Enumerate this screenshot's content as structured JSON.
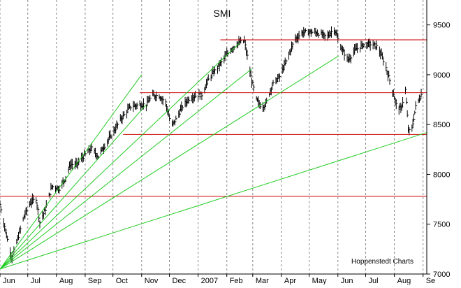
{
  "chart_data": {
    "type": "bar",
    "subtype": "ohlc",
    "title": "SMI",
    "credit": "Hoppenstedt Charts",
    "xlabel": "",
    "ylabel": "",
    "ylim": [
      7000,
      9750
    ],
    "y_ticks": [
      7000,
      7500,
      8000,
      8500,
      9000,
      9500
    ],
    "y_axis_position": "right",
    "x_range": [
      "2006-06-01",
      "2007-09-05"
    ],
    "x_ticks": [
      {
        "date": "2006-06-01",
        "label": "Jun"
      },
      {
        "date": "2006-07-01",
        "label": "Jul"
      },
      {
        "date": "2006-08-01",
        "label": "Aug"
      },
      {
        "date": "2006-09-01",
        "label": "Sep"
      },
      {
        "date": "2006-10-01",
        "label": "Oct"
      },
      {
        "date": "2006-11-01",
        "label": "Nov"
      },
      {
        "date": "2006-12-01",
        "label": "Dec"
      },
      {
        "date": "2007-01-01",
        "label": "2007"
      },
      {
        "date": "2007-02-01",
        "label": "Feb"
      },
      {
        "date": "2007-03-01",
        "label": "Mar"
      },
      {
        "date": "2007-04-01",
        "label": "Apr"
      },
      {
        "date": "2007-05-01",
        "label": "May"
      },
      {
        "date": "2007-06-01",
        "label": "Jun"
      },
      {
        "date": "2007-07-01",
        "label": "Jul"
      },
      {
        "date": "2007-08-01",
        "label": "Aug"
      },
      {
        "date": "2007-09-01",
        "label": "Se"
      }
    ],
    "grid": {
      "vertical": true,
      "style": "dashed"
    },
    "price_path": [
      [
        "2006-06-01",
        7700
      ],
      [
        "2006-06-06",
        7480
      ],
      [
        "2006-06-10",
        7300
      ],
      [
        "2006-06-14",
        7160
      ],
      [
        "2006-06-20",
        7350
      ],
      [
        "2006-06-27",
        7580
      ],
      [
        "2006-07-04",
        7720
      ],
      [
        "2006-07-10",
        7760
      ],
      [
        "2006-07-14",
        7520
      ],
      [
        "2006-07-20",
        7650
      ],
      [
        "2006-07-27",
        7880
      ],
      [
        "2006-08-04",
        7860
      ],
      [
        "2006-08-10",
        7950
      ],
      [
        "2006-08-16",
        8100
      ],
      [
        "2006-08-23",
        8100
      ],
      [
        "2006-09-01",
        8200
      ],
      [
        "2006-09-08",
        8260
      ],
      [
        "2006-09-15",
        8180
      ],
      [
        "2006-09-22",
        8290
      ],
      [
        "2006-10-01",
        8420
      ],
      [
        "2006-10-10",
        8560
      ],
      [
        "2006-10-20",
        8680
      ],
      [
        "2006-10-30",
        8700
      ],
      [
        "2006-11-06",
        8700
      ],
      [
        "2006-11-12",
        8790
      ],
      [
        "2006-11-20",
        8790
      ],
      [
        "2006-11-27",
        8720
      ],
      [
        "2006-12-03",
        8480
      ],
      [
        "2006-12-08",
        8550
      ],
      [
        "2006-12-15",
        8680
      ],
      [
        "2006-12-22",
        8760
      ],
      [
        "2006-12-29",
        8790
      ],
      [
        "2007-01-05",
        8800
      ],
      [
        "2007-01-12",
        8950
      ],
      [
        "2007-01-20",
        9050
      ],
      [
        "2007-01-28",
        9150
      ],
      [
        "2007-02-05",
        9250
      ],
      [
        "2007-02-12",
        9310
      ],
      [
        "2007-02-20",
        9340
      ],
      [
        "2007-02-27",
        8980
      ],
      [
        "2007-03-05",
        8750
      ],
      [
        "2007-03-10",
        8680
      ],
      [
        "2007-03-15",
        8700
      ],
      [
        "2007-03-22",
        8900
      ],
      [
        "2007-03-30",
        8980
      ],
      [
        "2007-04-07",
        9150
      ],
      [
        "2007-04-15",
        9350
      ],
      [
        "2007-04-23",
        9420
      ],
      [
        "2007-05-01",
        9430
      ],
      [
        "2007-05-10",
        9420
      ],
      [
        "2007-05-20",
        9380
      ],
      [
        "2007-05-28",
        9460
      ],
      [
        "2007-06-05",
        9260
      ],
      [
        "2007-06-12",
        9150
      ],
      [
        "2007-06-20",
        9250
      ],
      [
        "2007-06-28",
        9300
      ],
      [
        "2007-07-06",
        9310
      ],
      [
        "2007-07-14",
        9280
      ],
      [
        "2007-07-22",
        9100
      ],
      [
        "2007-07-29",
        8880
      ],
      [
        "2007-08-03",
        8700
      ],
      [
        "2007-08-08",
        8650
      ],
      [
        "2007-08-13",
        8850
      ],
      [
        "2007-08-16",
        8450
      ],
      [
        "2007-08-19",
        8400
      ],
      [
        "2007-08-24",
        8680
      ],
      [
        "2007-08-30",
        8800
      ]
    ],
    "horizontal_levels": [
      {
        "y": 9350,
        "from": "2007-01-25",
        "to": "2007-09-05",
        "color": "#cc0000"
      },
      {
        "y": 8820,
        "from": "2006-10-30",
        "to": "2007-09-05",
        "color": "#cc0000"
      },
      {
        "y": 8400,
        "from": "2006-10-12",
        "to": "2007-09-05",
        "color": "#cc0000"
      },
      {
        "y": 7780,
        "from": "2006-06-01",
        "to": "2007-09-05",
        "color": "#cc0000"
      }
    ],
    "trend_lines": [
      {
        "from": [
          "2006-06-01",
          7050
        ],
        "to": [
          "2006-11-01",
          9000
        ],
        "color": "#22cc22"
      },
      {
        "from": [
          "2006-06-01",
          7050
        ],
        "to": [
          "2006-11-06",
          8700
        ],
        "color": "#22cc22"
      },
      {
        "from": [
          "2006-06-01",
          7050
        ],
        "to": [
          "2007-02-15",
          9320
        ],
        "color": "#22cc22"
      },
      {
        "from": [
          "2006-06-01",
          7050
        ],
        "to": [
          "2007-02-28",
          9060
        ],
        "color": "#22cc22"
      },
      {
        "from": [
          "2006-06-01",
          7050
        ],
        "to": [
          "2007-06-02",
          9190
        ],
        "color": "#22cc22"
      },
      {
        "from": [
          "2006-06-01",
          7050
        ],
        "to": [
          "2007-09-05",
          8420
        ],
        "color": "#22cc22"
      }
    ],
    "colors": {
      "bars": "#000000",
      "grid": "#888888",
      "support_resistance": "#cc0000",
      "trend": "#22cc22",
      "background": "#ffffff"
    }
  }
}
